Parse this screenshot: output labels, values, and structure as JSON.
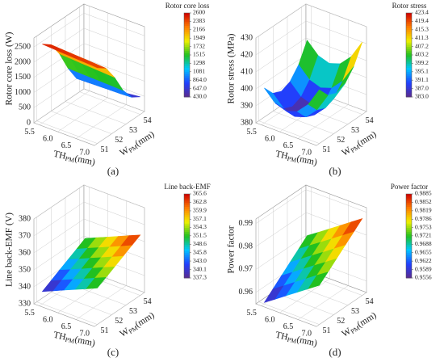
{
  "chart_data": [
    {
      "type": "surface",
      "panel": "(a)",
      "zlabel": "Rotor core loss (W)",
      "colorbar_title": "Rotor core loss",
      "xlabel": {
        "main": "TH",
        "sub": "PM",
        "unit": "(mm)"
      },
      "ylabel": {
        "main": "W",
        "sub": "PM",
        "unit": "(mm)"
      },
      "x": [
        5.5,
        5.8,
        6.1,
        6.4,
        6.7,
        7.0
      ],
      "y": [
        51,
        51.6,
        52.2,
        52.8,
        53.4,
        54
      ],
      "z": [
        [
          2600,
          2390,
          1900,
          1230,
          700,
          430
        ],
        [
          2580,
          2370,
          1880,
          1220,
          710,
          450
        ],
        [
          2560,
          2350,
          1860,
          1210,
          720,
          470
        ],
        [
          2540,
          2330,
          1840,
          1200,
          730,
          500
        ],
        [
          2520,
          2310,
          1820,
          1190,
          740,
          540
        ],
        [
          2500,
          2290,
          1800,
          1180,
          760,
          580
        ]
      ],
      "xlim": [
        5.35,
        7.0
      ],
      "ylim": [
        50.8,
        54.3
      ],
      "zlim": [
        0,
        2800
      ],
      "xticks": [
        5.5,
        {
          "value": 6.0,
          "label": "6.0"
        },
        6.5,
        {
          "value": 7.0,
          "label": "7.0"
        }
      ],
      "yticks": [
        51,
        52,
        53,
        54
      ],
      "zticks": [
        0,
        500,
        1000,
        1500,
        2000,
        2500
      ],
      "colorbar_ticks": [
        {
          "value": 430.0,
          "label": "430.0"
        },
        {
          "value": 647.0,
          "label": "647.0"
        },
        {
          "value": 864.0,
          "label": "864.0"
        },
        1081,
        1298,
        1515,
        1732,
        1949,
        2166,
        2383,
        2600
      ]
    },
    {
      "type": "surface",
      "panel": "(b)",
      "zlabel": "Rotor stress (MPa)",
      "colorbar_title": "Rotor stress",
      "xlabel": {
        "main": "TH",
        "sub": "PM",
        "unit": "(mm)"
      },
      "ylabel": {
        "main": "W",
        "sub": "PM",
        "unit": "(mm)"
      },
      "x": [
        5.5,
        5.8,
        6.1,
        6.4,
        6.7,
        7.0
      ],
      "y": [
        51,
        51.6,
        52.2,
        52.8,
        53.4,
        54
      ],
      "z": [
        [
          400.6,
          394.0,
          391.8,
          394.0,
          400.6,
          411.6
        ],
        [
          394.0,
          387.4,
          385.2,
          387.4,
          394.0,
          405.0
        ],
        [
          391.8,
          385.2,
          383.0,
          385.2,
          391.8,
          402.8
        ],
        [
          394.0,
          387.4,
          385.2,
          387.4,
          394.0,
          405.0
        ],
        [
          400.6,
          394.0,
          391.8,
          394.0,
          400.6,
          411.6
        ],
        [
          411.6,
          405.0,
          402.8,
          405.0,
          411.6,
          422.6
        ]
      ],
      "xlim": [
        5.35,
        7.0
      ],
      "ylim": [
        50.8,
        54.3
      ],
      "zlim": [
        380,
        430
      ],
      "xticks": [
        5.5,
        {
          "value": 6.0,
          "label": "6.0"
        },
        6.5,
        {
          "value": 7.0,
          "label": "7.0"
        }
      ],
      "yticks": [
        51,
        52,
        53,
        54
      ],
      "zticks": [
        380,
        390,
        400,
        410,
        420,
        430
      ],
      "colorbar_ticks": [
        {
          "value": 383.0,
          "label": "383.0"
        },
        {
          "value": 387.0,
          "label": "387.0"
        },
        391.1,
        395.1,
        399.2,
        403.2,
        407.2,
        411.3,
        415.3,
        419.4,
        423.4
      ]
    },
    {
      "type": "surface",
      "panel": "(c)",
      "zlabel": "Line back-EMF (V)",
      "colorbar_title": "Line back-EMF",
      "xlabel": {
        "main": "TH",
        "sub": "PM",
        "unit": "(mm)"
      },
      "ylabel": {
        "main": "W",
        "sub": "PM",
        "unit": "(mm)"
      },
      "x": [
        5.5,
        5.8,
        6.1,
        6.4,
        6.7,
        7.0
      ],
      "y": [
        51,
        51.6,
        52.2,
        52.8,
        53.4,
        54
      ],
      "z": [
        [
          337.3,
          340.1,
          343.0,
          345.8,
          348.6,
          351.5
        ],
        [
          340.1,
          343.0,
          345.8,
          348.6,
          351.5,
          354.3
        ],
        [
          343.0,
          345.8,
          348.6,
          351.5,
          354.3,
          357.1
        ],
        [
          345.8,
          348.6,
          351.5,
          354.3,
          357.1,
          359.9
        ],
        [
          348.6,
          351.5,
          354.3,
          357.1,
          359.9,
          362.8
        ],
        [
          351.5,
          354.3,
          357.1,
          359.9,
          362.8,
          365.6
        ]
      ],
      "xlim": [
        5.35,
        7.0
      ],
      "ylim": [
        50.8,
        54.3
      ],
      "zlim": [
        330,
        380
      ],
      "xticks": [
        5.5,
        {
          "value": 6.0,
          "label": "6.0"
        },
        6.5,
        {
          "value": 7.0,
          "label": "7.0"
        }
      ],
      "yticks": [
        51,
        52,
        53,
        54
      ],
      "zticks": [
        330,
        340,
        350,
        360,
        370,
        380
      ],
      "colorbar_ticks": [
        337.3,
        340.1,
        {
          "value": 343.0,
          "label": "343.0"
        },
        345.8,
        348.6,
        351.5,
        354.3,
        357.1,
        359.9,
        362.8,
        365.6
      ]
    },
    {
      "type": "surface",
      "panel": "(d)",
      "zlabel": "Power factor",
      "colorbar_title": "Power factor",
      "xlabel": {
        "main": "TH",
        "sub": "PM",
        "unit": "(mm)"
      },
      "ylabel": {
        "main": "W",
        "sub": "PM",
        "unit": "(mm)"
      },
      "x": [
        5.5,
        5.8,
        6.1,
        6.4,
        6.7,
        7.0
      ],
      "y": [
        51,
        51.6,
        52.2,
        52.8,
        53.4,
        54
      ],
      "z": [
        [
          0.9556,
          0.9589,
          0.9622,
          0.9655,
          0.9688,
          0.9721
        ],
        [
          0.9589,
          0.9622,
          0.9655,
          0.9688,
          0.9721,
          0.9753
        ],
        [
          0.9622,
          0.9655,
          0.9688,
          0.9721,
          0.9753,
          0.9786
        ],
        [
          0.9655,
          0.9688,
          0.9721,
          0.9753,
          0.9786,
          0.9819
        ],
        [
          0.9688,
          0.9721,
          0.9753,
          0.9786,
          0.9819,
          0.9852
        ],
        [
          0.9721,
          0.9753,
          0.9786,
          0.9819,
          0.9852,
          0.9885
        ]
      ],
      "xlim": [
        5.35,
        7.0
      ],
      "ylim": [
        50.8,
        54.3
      ],
      "zlim": [
        0.955,
        0.992
      ],
      "xticks": [
        5.5,
        {
          "value": 6.0,
          "label": "6.0"
        },
        6.5,
        {
          "value": 7.0,
          "label": "7.0"
        }
      ],
      "yticks": [
        51,
        52,
        53,
        54
      ],
      "zticks": [
        0.96,
        0.97,
        0.98,
        0.99
      ],
      "colorbar_ticks": [
        0.9556,
        0.9589,
        0.9622,
        0.9655,
        0.9688,
        0.9721,
        0.9753,
        0.9786,
        0.9819,
        0.9852,
        0.9885
      ]
    }
  ]
}
